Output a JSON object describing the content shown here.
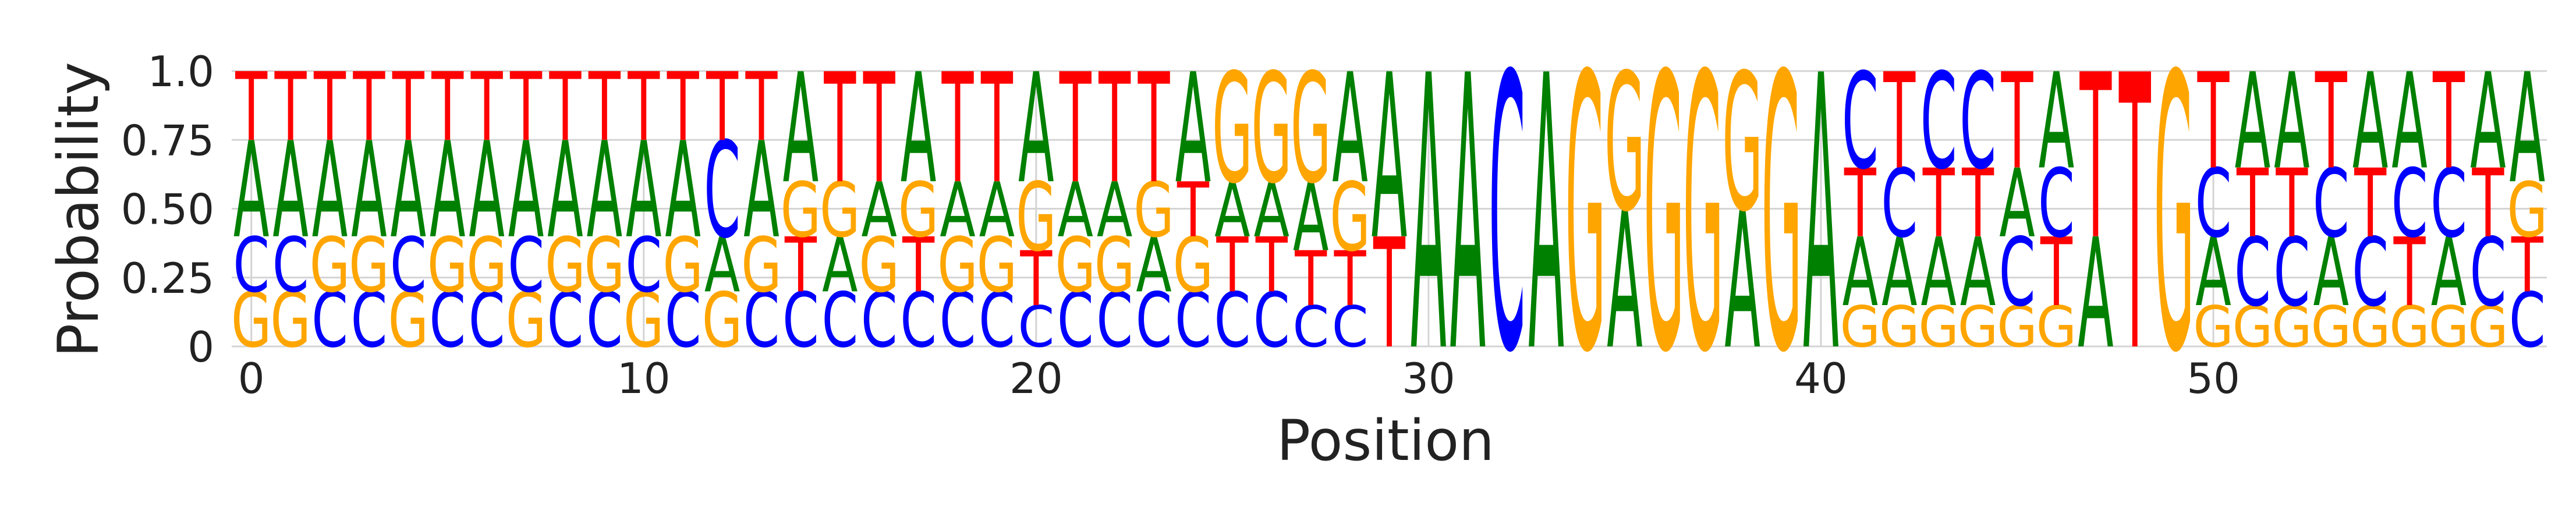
{
  "chart_data": {
    "type": "sequence-logo",
    "xlabel": "Position",
    "ylabel": "Probability",
    "xticks": [
      0,
      10,
      20,
      30,
      40,
      50
    ],
    "yticks": [
      "0",
      "0.25",
      "0.50",
      "0.75",
      "1.0"
    ],
    "ylim": [
      0,
      1
    ],
    "xlim": [
      -0.5,
      58.5
    ],
    "grid": true,
    "colors": {
      "A": "#008000",
      "C": "#0000ff",
      "G": "#ffa500",
      "T": "#ff0000"
    },
    "positions": [
      {
        "pos": 0,
        "G": 0.2,
        "C": 0.2,
        "A": 0.35,
        "T": 0.25
      },
      {
        "pos": 1,
        "G": 0.2,
        "C": 0.2,
        "A": 0.35,
        "T": 0.25
      },
      {
        "pos": 2,
        "C": 0.2,
        "G": 0.2,
        "A": 0.35,
        "T": 0.25
      },
      {
        "pos": 3,
        "C": 0.2,
        "G": 0.2,
        "A": 0.35,
        "T": 0.25
      },
      {
        "pos": 4,
        "G": 0.2,
        "C": 0.2,
        "A": 0.35,
        "T": 0.25
      },
      {
        "pos": 5,
        "C": 0.2,
        "G": 0.2,
        "A": 0.35,
        "T": 0.25
      },
      {
        "pos": 6,
        "C": 0.2,
        "G": 0.2,
        "A": 0.35,
        "T": 0.25
      },
      {
        "pos": 7,
        "G": 0.2,
        "C": 0.2,
        "A": 0.35,
        "T": 0.25
      },
      {
        "pos": 8,
        "C": 0.2,
        "G": 0.2,
        "A": 0.35,
        "T": 0.25
      },
      {
        "pos": 9,
        "C": 0.2,
        "G": 0.2,
        "A": 0.35,
        "T": 0.25
      },
      {
        "pos": 10,
        "G": 0.2,
        "C": 0.2,
        "A": 0.35,
        "T": 0.25
      },
      {
        "pos": 11,
        "C": 0.2,
        "G": 0.2,
        "A": 0.35,
        "T": 0.25
      },
      {
        "pos": 12,
        "G": 0.2,
        "A": 0.2,
        "C": 0.35,
        "T": 0.25
      },
      {
        "pos": 13,
        "C": 0.2,
        "G": 0.2,
        "A": 0.35,
        "T": 0.25
      },
      {
        "pos": 14,
        "C": 0.2,
        "T": 0.2,
        "G": 0.2,
        "A": 0.4
      },
      {
        "pos": 15,
        "C": 0.2,
        "A": 0.2,
        "G": 0.2,
        "T": 0.4
      },
      {
        "pos": 16,
        "C": 0.2,
        "G": 0.2,
        "A": 0.2,
        "T": 0.4
      },
      {
        "pos": 17,
        "C": 0.2,
        "T": 0.2,
        "G": 0.2,
        "A": 0.4
      },
      {
        "pos": 18,
        "C": 0.2,
        "G": 0.2,
        "A": 0.2,
        "T": 0.4
      },
      {
        "pos": 19,
        "C": 0.2,
        "G": 0.2,
        "A": 0.2,
        "T": 0.4
      },
      {
        "pos": 20,
        "C": 0.15,
        "T": 0.2,
        "G": 0.25,
        "A": 0.4
      },
      {
        "pos": 21,
        "C": 0.2,
        "G": 0.2,
        "A": 0.2,
        "T": 0.4
      },
      {
        "pos": 22,
        "C": 0.2,
        "G": 0.2,
        "A": 0.2,
        "T": 0.4
      },
      {
        "pos": 23,
        "C": 0.2,
        "A": 0.2,
        "G": 0.2,
        "T": 0.4
      },
      {
        "pos": 24,
        "C": 0.2,
        "G": 0.2,
        "T": 0.2,
        "A": 0.4
      },
      {
        "pos": 25,
        "C": 0.2,
        "T": 0.2,
        "A": 0.2,
        "G": 0.4
      },
      {
        "pos": 26,
        "C": 0.2,
        "T": 0.2,
        "A": 0.2,
        "G": 0.4
      },
      {
        "pos": 27,
        "C": 0.15,
        "T": 0.2,
        "A": 0.25,
        "G": 0.4
      },
      {
        "pos": 28,
        "C": 0.15,
        "T": 0.2,
        "G": 0.25,
        "A": 0.4
      },
      {
        "pos": 29,
        "T": 0.4,
        "A": 0.6
      },
      {
        "pos": 30,
        "A": 1.0
      },
      {
        "pos": 31,
        "A": 1.0
      },
      {
        "pos": 32,
        "C": 1.0
      },
      {
        "pos": 33,
        "A": 1.0
      },
      {
        "pos": 34,
        "G": 1.0
      },
      {
        "pos": 35,
        "A": 0.5,
        "G": 0.5
      },
      {
        "pos": 36,
        "G": 1.0
      },
      {
        "pos": 37,
        "G": 1.0
      },
      {
        "pos": 38,
        "A": 0.5,
        "G": 0.5
      },
      {
        "pos": 39,
        "G": 1.0
      },
      {
        "pos": 40,
        "A": 1.0
      },
      {
        "pos": 41,
        "G": 0.15,
        "A": 0.25,
        "T": 0.25,
        "C": 0.35
      },
      {
        "pos": 42,
        "G": 0.15,
        "A": 0.25,
        "C": 0.25,
        "T": 0.35
      },
      {
        "pos": 43,
        "G": 0.15,
        "A": 0.25,
        "T": 0.25,
        "C": 0.35
      },
      {
        "pos": 44,
        "G": 0.15,
        "A": 0.25,
        "T": 0.25,
        "C": 0.35
      },
      {
        "pos": 45,
        "G": 0.15,
        "C": 0.25,
        "A": 0.25,
        "T": 0.35
      },
      {
        "pos": 46,
        "G": 0.15,
        "T": 0.25,
        "C": 0.25,
        "A": 0.35
      },
      {
        "pos": 47,
        "A": 0.4,
        "T": 0.6
      },
      {
        "pos": 48,
        "T": 1.0
      },
      {
        "pos": 49,
        "G": 1.0
      },
      {
        "pos": 50,
        "G": 0.15,
        "A": 0.25,
        "C": 0.25,
        "T": 0.35
      },
      {
        "pos": 51,
        "G": 0.15,
        "C": 0.25,
        "T": 0.25,
        "A": 0.35
      },
      {
        "pos": 52,
        "G": 0.15,
        "C": 0.25,
        "T": 0.25,
        "A": 0.35
      },
      {
        "pos": 53,
        "G": 0.15,
        "A": 0.25,
        "C": 0.25,
        "T": 0.35
      },
      {
        "pos": 54,
        "G": 0.15,
        "C": 0.25,
        "T": 0.25,
        "A": 0.35
      },
      {
        "pos": 55,
        "G": 0.15,
        "T": 0.25,
        "C": 0.25,
        "A": 0.35
      },
      {
        "pos": 56,
        "G": 0.15,
        "A": 0.25,
        "C": 0.25,
        "T": 0.35
      },
      {
        "pos": 57,
        "G": 0.15,
        "C": 0.25,
        "T": 0.25,
        "A": 0.35
      },
      {
        "pos": 58,
        "C": 0.2,
        "T": 0.2,
        "G": 0.2,
        "A": 0.4
      }
    ]
  }
}
